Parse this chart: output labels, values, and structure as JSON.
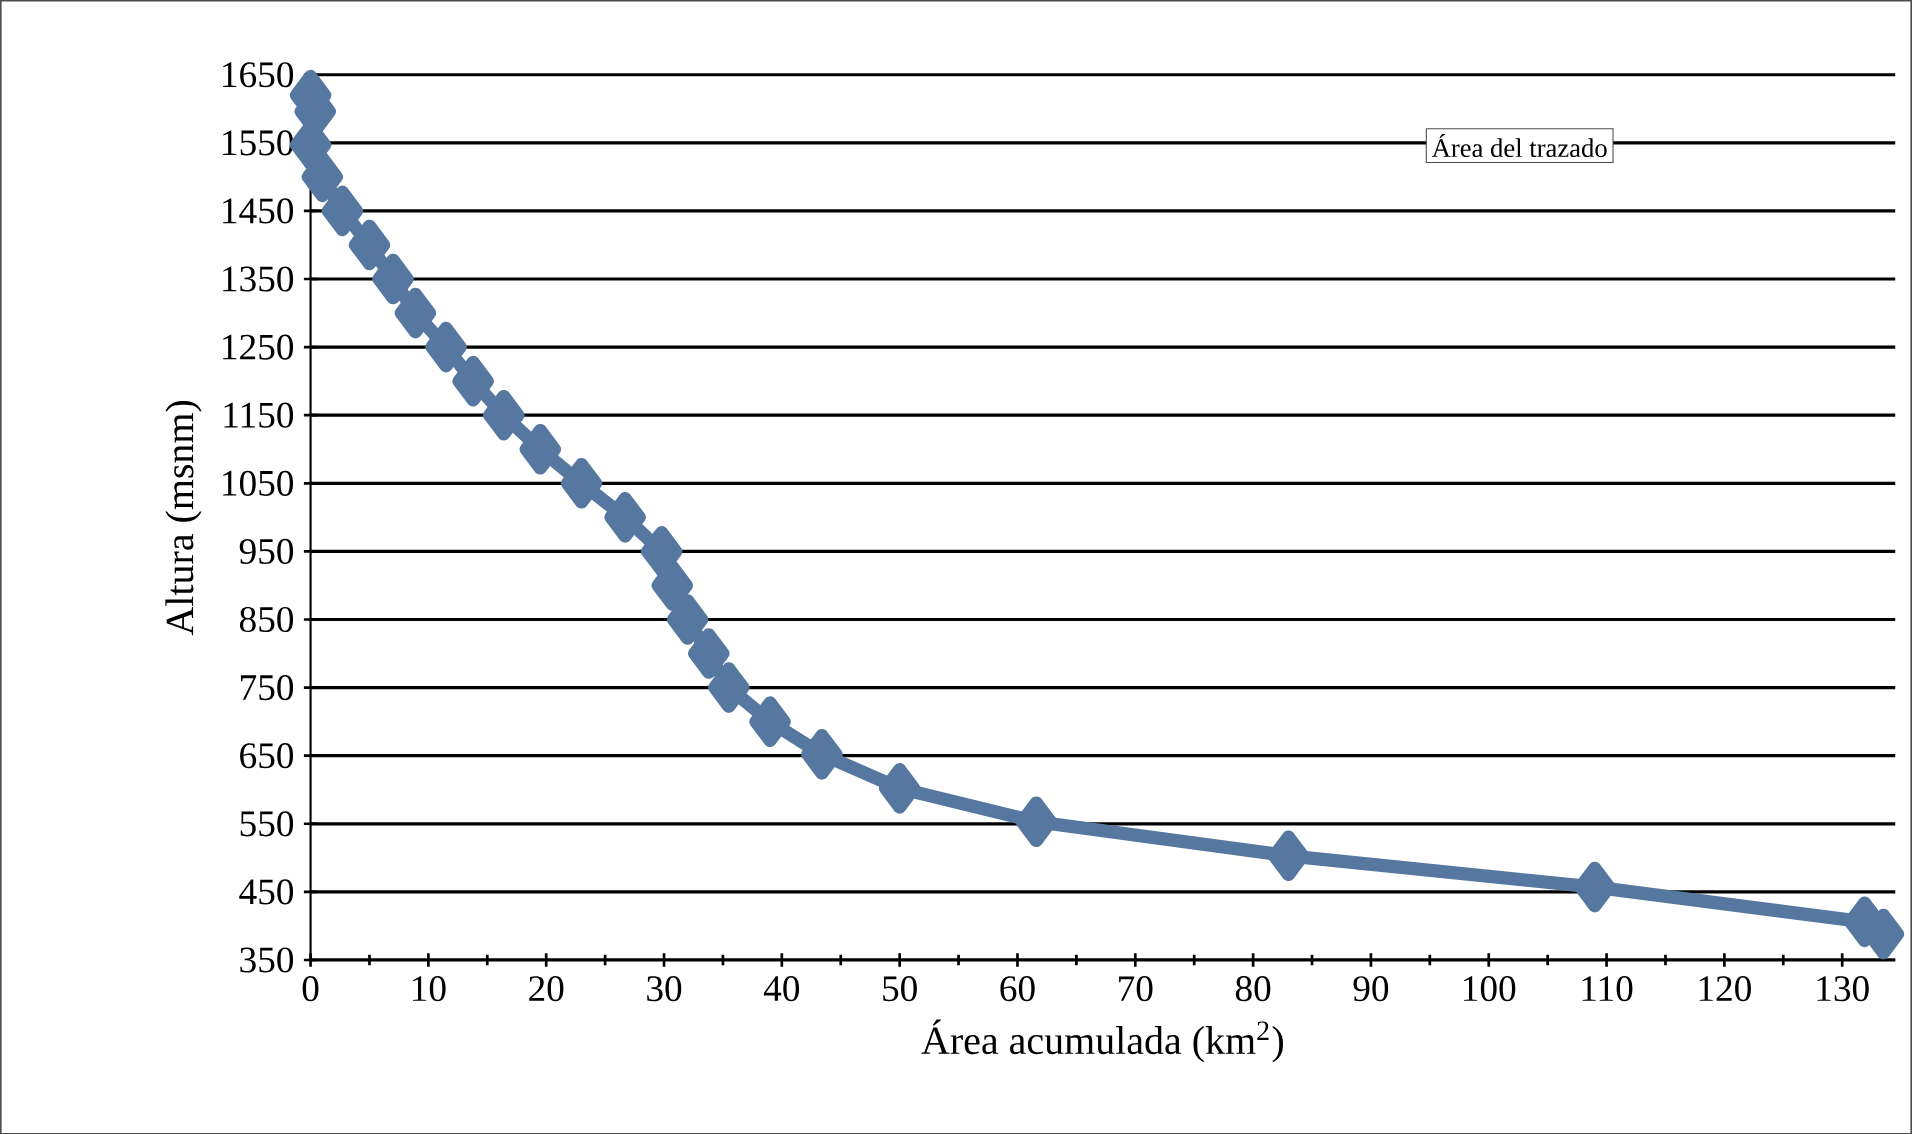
{
  "chart_data": {
    "type": "line",
    "xlabel": "Área acumulada (km$^{2}$)",
    "ylabel": "Altura (msnm)",
    "annotations": [
      "Área del trazado"
    ],
    "x": [
      0,
      0.4,
      0,
      1,
      2.7,
      5,
      7,
      8.9,
      11.5,
      13.8,
      16.4,
      19.5,
      23,
      26.7,
      29.8,
      30.7,
      32,
      33.8,
      35.5,
      39,
      43.4,
      50,
      61.6,
      83,
      109,
      131.9,
      133.5
    ],
    "series": [
      {
        "color": "#5577a0",
        "values": [
          1620,
          1596,
          1547,
          1500,
          1450,
          1400,
          1350,
          1300,
          1250,
          1200,
          1150,
          1100,
          1050,
          1000,
          950,
          900,
          850,
          800,
          750,
          700,
          652,
          602,
          553,
          503,
          457,
          406,
          388
        ]
      }
    ],
    "xlim": [
      0,
      134.5
    ],
    "xticks": [
      0,
      10,
      20,
      30,
      40,
      50,
      60,
      70,
      80,
      90,
      100,
      110,
      120,
      130
    ],
    "ylim": [
      350,
      1650
    ],
    "yticks": [
      350,
      450,
      550,
      650,
      750,
      850,
      950,
      1050,
      1150,
      1250,
      1350,
      1450,
      1550,
      1650
    ],
    "grid": "y",
    "marker": "diamond",
    "line_style": "solid"
  }
}
